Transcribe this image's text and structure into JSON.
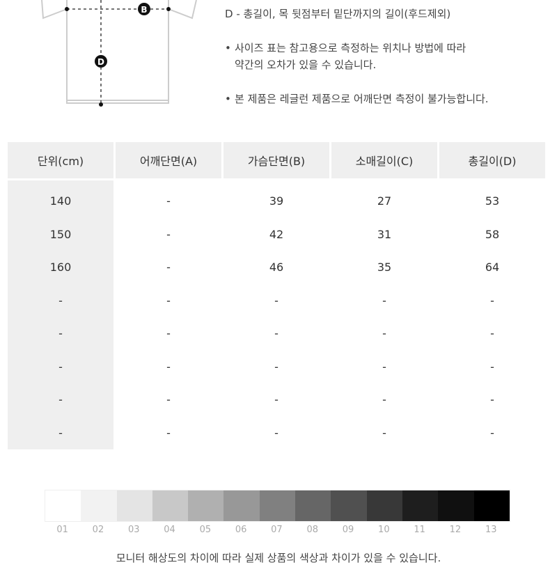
{
  "diagram": {
    "markers": [
      "B",
      "D"
    ]
  },
  "notes": {
    "d_desc": "D - 총길이, 목 뒷점부터 밑단까지의 길이(후드제외)",
    "bullet": "•",
    "note1_line1": "사이즈 표는 참고용으로 측정하는 위치나 방법에 따라",
    "note1_line2": "약간의 오차가 있을 수 있습니다.",
    "note2": "본 제품은 레글런 제품으로 어깨단면 측정이 불가능합니다."
  },
  "table": {
    "headers": [
      "단위(cm)",
      "어깨단면(A)",
      "가슴단면(B)",
      "소매길이(C)",
      "총길이(D)"
    ],
    "rows": [
      [
        "140",
        "-",
        "39",
        "27",
        "53"
      ],
      [
        "150",
        "-",
        "42",
        "31",
        "58"
      ],
      [
        "160",
        "-",
        "46",
        "35",
        "64"
      ],
      [
        "-",
        "-",
        "-",
        "-",
        "-"
      ],
      [
        "-",
        "-",
        "-",
        "-",
        "-"
      ],
      [
        "-",
        "-",
        "-",
        "-",
        "-"
      ],
      [
        "-",
        "-",
        "-",
        "-",
        "-"
      ],
      [
        "-",
        "-",
        "-",
        "-",
        "-"
      ]
    ]
  },
  "color_scale": {
    "labels": [
      "01",
      "02",
      "03",
      "04",
      "05",
      "06",
      "07",
      "08",
      "09",
      "10",
      "11",
      "12",
      "13"
    ],
    "colors": [
      "#ffffff",
      "#f2f2f2",
      "#e4e4e4",
      "#c8c8c8",
      "#b0b0b0",
      "#989898",
      "#808080",
      "#666666",
      "#505050",
      "#383838",
      "#1e1e1e",
      "#101010",
      "#000000"
    ]
  },
  "footer": "모니터 해상도의 차이에 따라 실제 상품의 색상과 차이가 있을 수 있습니다."
}
